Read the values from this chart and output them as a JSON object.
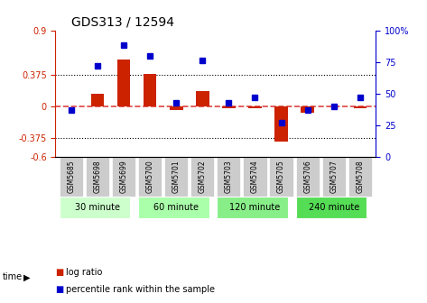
{
  "title": "GDS313 / 12594",
  "samples": [
    "GSM5685",
    "GSM5698",
    "GSM5699",
    "GSM5700",
    "GSM5701",
    "GSM5702",
    "GSM5703",
    "GSM5704",
    "GSM5705",
    "GSM5706",
    "GSM5707",
    "GSM5708"
  ],
  "log_ratio": [
    0.0,
    0.15,
    0.55,
    0.38,
    -0.04,
    0.18,
    -0.02,
    -0.02,
    -0.42,
    -0.08,
    0.0,
    -0.02
  ],
  "percentile": [
    37,
    72,
    88,
    80,
    43,
    76,
    43,
    47,
    27,
    37,
    40,
    47
  ],
  "groups": [
    {
      "label": "30 minute",
      "start": 0,
      "end": 3,
      "color": "#ccffcc"
    },
    {
      "label": "60 minute",
      "start": 3,
      "end": 6,
      "color": "#aaffaa"
    },
    {
      "label": "120 minute",
      "start": 6,
      "end": 9,
      "color": "#88ee88"
    },
    {
      "label": "240 minute",
      "start": 9,
      "end": 12,
      "color": "#55dd55"
    }
  ],
  "ylim": [
    -0.6,
    0.9
  ],
  "yticks_left": [
    -0.6,
    -0.375,
    0.0,
    0.375,
    0.9
  ],
  "ytick_labels_left": [
    "-0.6",
    "-0.375",
    "0",
    "0.375",
    "0.9"
  ],
  "yticks_right_val": [
    0,
    25,
    50,
    75,
    100
  ],
  "ytick_labels_right": [
    "0",
    "25",
    "50",
    "75",
    "100%"
  ],
  "bar_color": "#cc2200",
  "dot_color": "#0000cc",
  "zero_line_color": "#dd4444",
  "hline_color": "#000000",
  "hline_positions": [
    -0.375,
    0.375
  ],
  "sample_bg_color": "#cccccc",
  "legend_items": [
    {
      "label": "log ratio",
      "color": "#cc2200"
    },
    {
      "label": "percentile rank within the sample",
      "color": "#0000cc"
    }
  ]
}
